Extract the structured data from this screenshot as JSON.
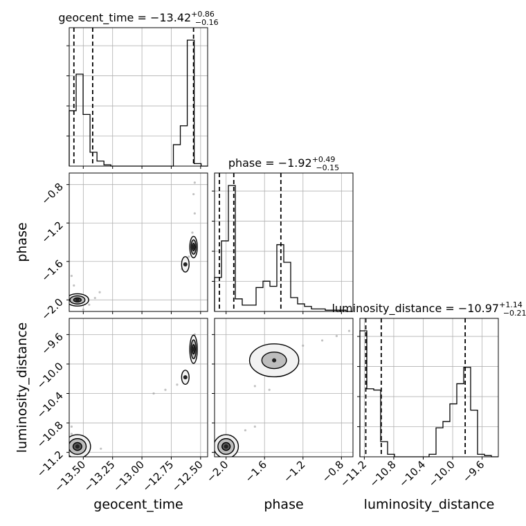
{
  "chart_data": {
    "type": "corner",
    "parameters": [
      "geocent_time",
      "phase",
      "luminosity_distance"
    ],
    "titles": [
      {
        "name": "geocent_time",
        "median": "−13.42",
        "plus": "+0.86",
        "minus": "−0.16"
      },
      {
        "name": "phase",
        "median": "−1.92",
        "plus": "+0.49",
        "minus": "−0.15"
      },
      {
        "name": "luminosity_distance",
        "median": "−10.97",
        "plus": "+1.14",
        "minus": "−0.21"
      }
    ],
    "ranges": {
      "geocent_time": [
        -13.62,
        -12.44
      ],
      "phase": [
        -2.12,
        -0.68
      ],
      "luminosity_distance": [
        -11.26,
        -9.38
      ]
    },
    "ticks": {
      "geocent_time": [
        -13.5,
        -13.25,
        -13.0,
        -12.75,
        -12.5
      ],
      "phase": [
        -2.0,
        -1.6,
        -1.2,
        -0.8
      ],
      "luminosity_distance": [
        -11.2,
        -10.8,
        -10.4,
        -10.0,
        -9.6
      ]
    },
    "tick_labels": {
      "geocent_time": [
        "−13.50",
        "−13.25",
        "−13.00",
        "−12.75",
        "−12.50"
      ],
      "phase": [
        "−2.0",
        "−1.6",
        "−1.2",
        "−0.8"
      ],
      "luminosity_distance": [
        "−11.2",
        "−10.8",
        "−10.4",
        "−10.0",
        "−9.6"
      ]
    },
    "quantile_lines": {
      "geocent_time": [
        -13.58,
        -13.42,
        -12.56
      ],
      "phase": [
        -2.07,
        -1.92,
        -1.43
      ],
      "luminosity_distance": [
        -11.18,
        -10.97,
        -9.83
      ]
    },
    "histograms": {
      "geocent_time": {
        "edges": [
          -13.62,
          -13.5608,
          -13.5016,
          -13.4424,
          -13.3832,
          -13.324,
          -13.2648,
          -13.2056,
          -13.1464,
          -13.0872,
          -13.028,
          -12.9688,
          -12.9096,
          -12.8504,
          -12.7912,
          -12.732,
          -12.6728,
          -12.6136,
          -12.5544,
          -12.4952,
          -12.436
        ],
        "counts": [
          0.44,
          0.73,
          0.41,
          0.11,
          0.04,
          0.01,
          0,
          0,
          0,
          0,
          0,
          0,
          0,
          0,
          0,
          0.17,
          0.32,
          1.0,
          0.02,
          0
        ]
      },
      "phase": {
        "edges": [
          -2.12,
          -2.048,
          -1.976,
          -1.904,
          -1.832,
          -1.76,
          -1.688,
          -1.616,
          -1.544,
          -1.472,
          -1.4,
          -1.328,
          -1.256,
          -1.184,
          -1.112,
          -1.04,
          -0.968,
          -0.896,
          -0.824,
          -0.752,
          -0.68
        ],
        "counts": [
          0.27,
          0.56,
          1.0,
          0.1,
          0.05,
          0.05,
          0.19,
          0.24,
          0.2,
          0.53,
          0.39,
          0.11,
          0.06,
          0.04,
          0.02,
          0.02,
          0.01,
          0.01,
          0.01,
          0.0
        ]
      },
      "luminosity_distance": {
        "edges": [
          -11.26,
          -11.166,
          -11.072,
          -10.978,
          -10.884,
          -10.79,
          -10.696,
          -10.602,
          -10.508,
          -10.414,
          -10.32,
          -10.226,
          -10.132,
          -10.038,
          -9.944,
          -9.85,
          -9.756,
          -9.662,
          -9.568,
          -9.474,
          -9.38
        ],
        "counts": [
          1.0,
          0.54,
          0.53,
          0.12,
          0.02,
          0.0,
          0.0,
          0.0,
          0.0,
          0.0,
          0.02,
          0.23,
          0.28,
          0.42,
          0.58,
          0.71,
          0.37,
          0.02,
          0.01,
          0.0
        ]
      }
    },
    "contours": [
      {
        "x": "geocent_time",
        "y": "phase",
        "clusters": [
          {
            "cx": -13.55,
            "cy": -2.0,
            "sx": 0.06,
            "sy": 0.04,
            "levels": 3
          },
          {
            "cx": -12.56,
            "cy": -1.45,
            "sx": 0.02,
            "sy": 0.07,
            "levels": 3
          },
          {
            "cx": -12.63,
            "cy": -1.63,
            "sx": 0.02,
            "sy": 0.05,
            "levels": 1
          }
        ]
      },
      {
        "x": "geocent_time",
        "y": "luminosity_distance",
        "clusters": [
          {
            "cx": -13.55,
            "cy": -11.12,
            "sx": 0.07,
            "sy": 0.1,
            "levels": 3
          },
          {
            "cx": -12.56,
            "cy": -9.8,
            "sx": 0.02,
            "sy": 0.12,
            "levels": 3
          },
          {
            "cx": -12.63,
            "cy": -10.18,
            "sx": 0.02,
            "sy": 0.06,
            "levels": 1
          }
        ]
      },
      {
        "x": "phase",
        "y": "luminosity_distance",
        "clusters": [
          {
            "cx": -2.0,
            "cy": -11.12,
            "sx": 0.08,
            "sy": 0.1,
            "levels": 3
          },
          {
            "cx": -1.5,
            "cy": -9.95,
            "sx": 0.16,
            "sy": 0.14,
            "levels": 2
          }
        ]
      }
    ],
    "scatter_trails": [
      {
        "x": "geocent_time",
        "y": "phase",
        "points": [
          [
            -12.57,
            -1.3
          ],
          [
            -12.55,
            -1.1
          ],
          [
            -12.56,
            -0.9
          ],
          [
            -12.55,
            -0.78
          ],
          [
            -12.6,
            -1.55
          ],
          [
            -12.66,
            -1.68
          ],
          [
            -13.6,
            -1.75
          ],
          [
            -13.58,
            -1.85
          ],
          [
            -13.45,
            -2.05
          ],
          [
            -13.4,
            -1.98
          ],
          [
            -13.36,
            -1.92
          ],
          [
            -13.5,
            -2.1
          ]
        ]
      },
      {
        "x": "geocent_time",
        "y": "luminosity_distance",
        "points": [
          [
            -12.7,
            -10.28
          ],
          [
            -12.8,
            -10.35
          ],
          [
            -12.9,
            -10.4
          ],
          [
            -12.55,
            -9.6
          ],
          [
            -12.58,
            -9.7
          ],
          [
            -13.45,
            -11.18
          ],
          [
            -13.35,
            -11.15
          ],
          [
            -13.6,
            -10.85
          ],
          [
            -13.6,
            -10.95
          ]
        ]
      },
      {
        "x": "phase",
        "y": "luminosity_distance",
        "points": [
          [
            -1.2,
            -9.75
          ],
          [
            -1.0,
            -9.68
          ],
          [
            -0.85,
            -9.62
          ],
          [
            -0.72,
            -9.55
          ],
          [
            -1.7,
            -10.3
          ],
          [
            -1.55,
            -10.35
          ],
          [
            -1.8,
            -10.9
          ],
          [
            -1.7,
            -10.85
          ],
          [
            -2.1,
            -11.1
          ]
        ]
      }
    ],
    "grid": true,
    "legend": "none"
  }
}
